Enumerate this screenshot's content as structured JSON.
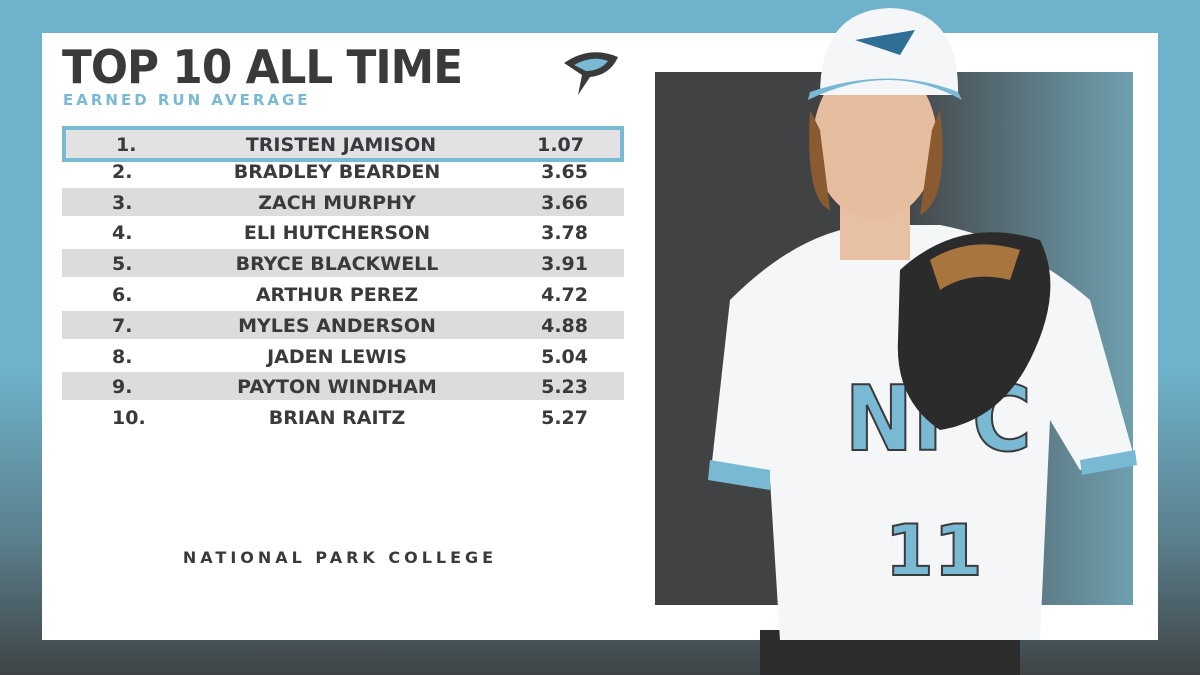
{
  "header": {
    "title": "TOP 10 ALL TIME",
    "subtitle": "EARNED RUN AVERAGE"
  },
  "table": {
    "rows": [
      [
        "1.",
        "TRISTEN JAMISON",
        "1.07"
      ],
      [
        "2.",
        "BRADLEY BEARDEN",
        "3.65"
      ],
      [
        "3.",
        "ZACH MURPHY",
        "3.66"
      ],
      [
        "4.",
        "ELI HUTCHERSON",
        "3.78"
      ],
      [
        "5.",
        "BRYCE BLACKWELL",
        "3.91"
      ],
      [
        "6.",
        "ARTHUR PEREZ",
        "4.72"
      ],
      [
        "7.",
        "MYLES ANDERSON",
        "4.88"
      ],
      [
        "8.",
        "JADEN LEWIS",
        "5.04"
      ],
      [
        "9.",
        "PAYTON WINDHAM",
        "5.23"
      ],
      [
        "10.",
        "BRIAN RAITZ",
        "5.27"
      ]
    ]
  },
  "footer": {
    "text": "NATIONAL PARK COLLEGE"
  },
  "player": {
    "jersey_letters": "NPC",
    "jersey_number": "11"
  }
}
